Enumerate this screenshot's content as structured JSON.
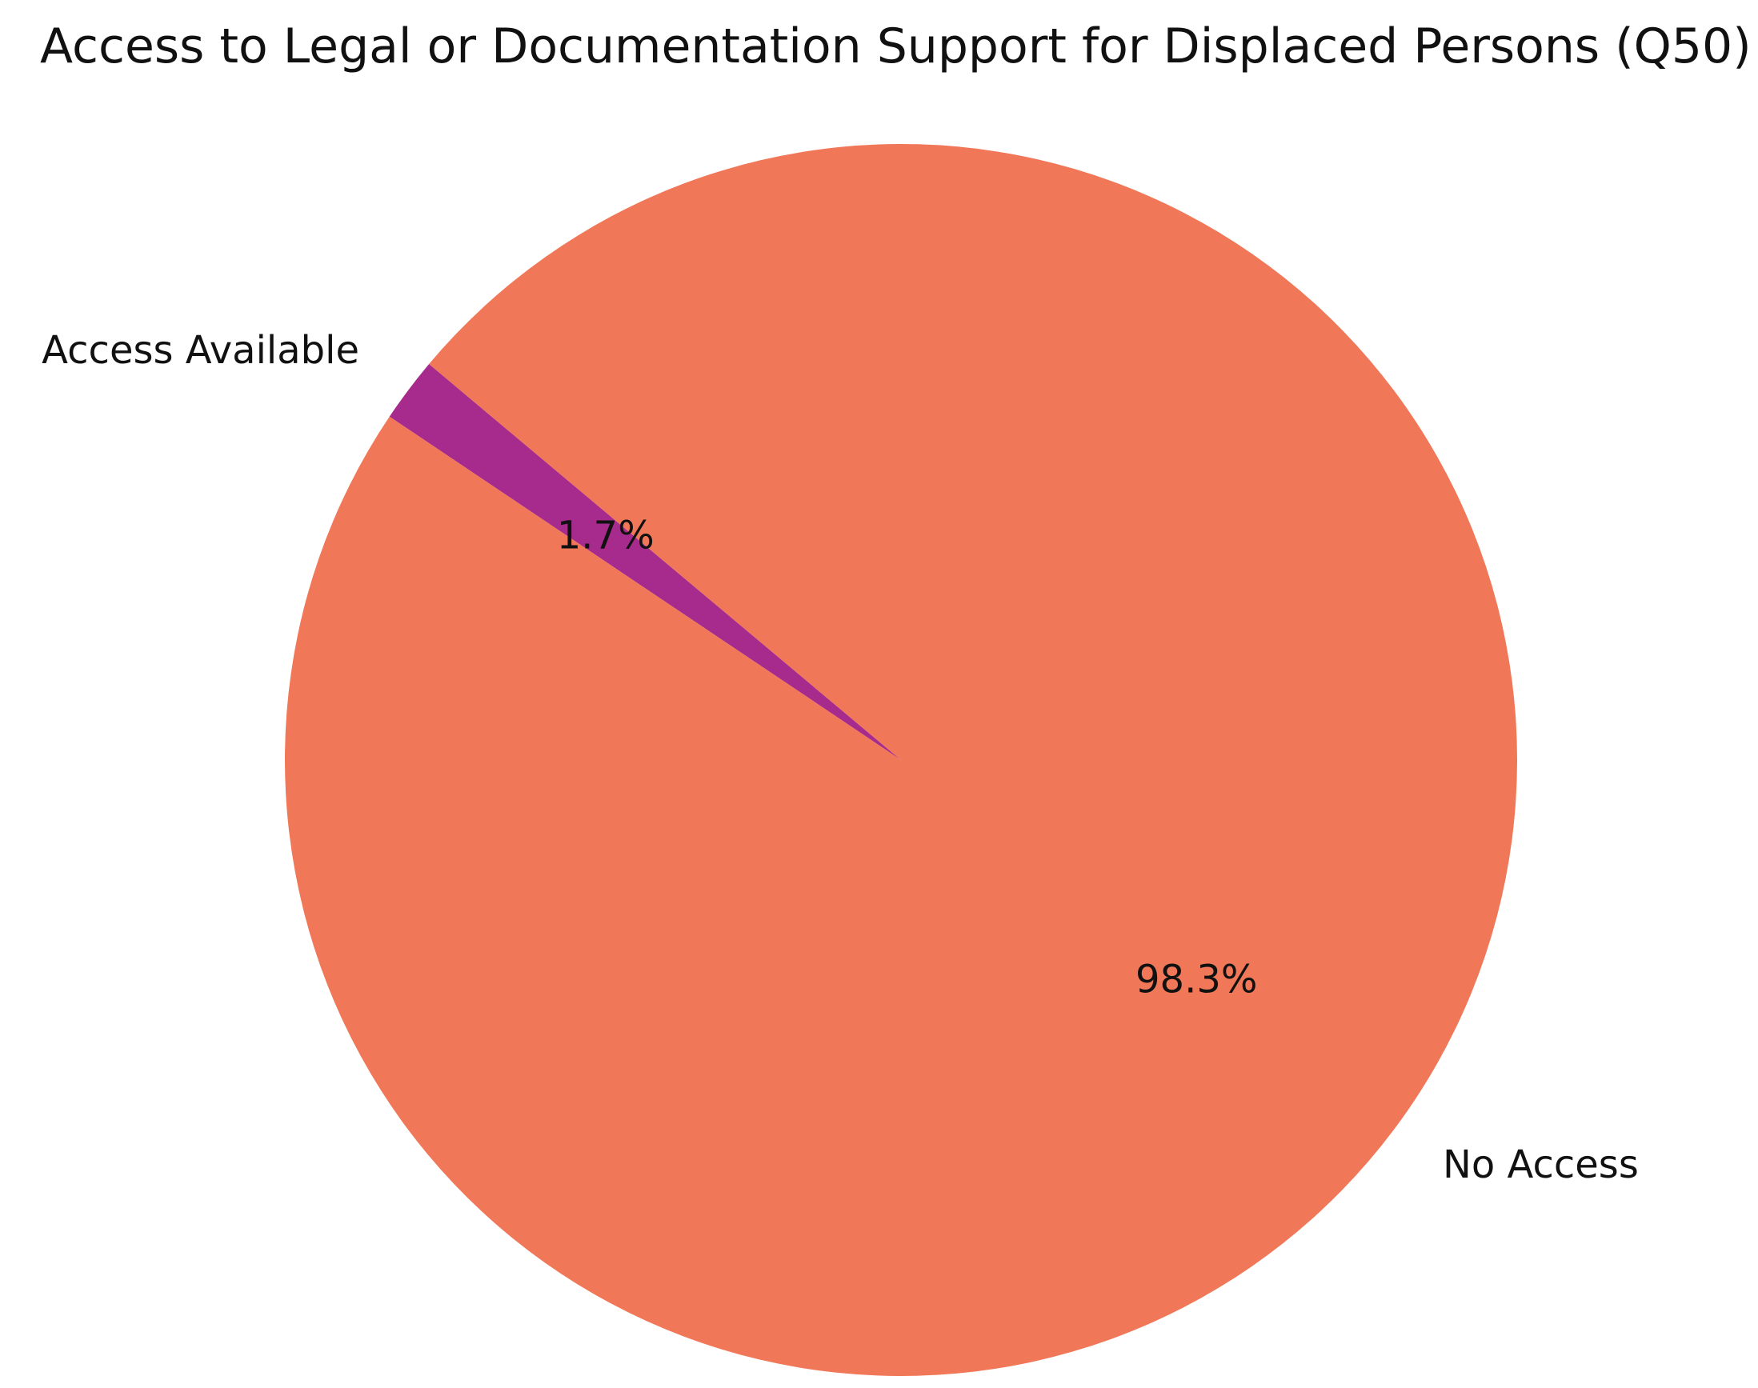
{
  "chart_data": {
    "type": "pie",
    "title": "Access to Legal or Documentation Support for Displaced Persons (Q50)",
    "slices": [
      {
        "label": "Access Available",
        "value": 1.7,
        "pct_label": "1.7%",
        "color": "#a62b8c"
      },
      {
        "label": "No Access",
        "value": 98.3,
        "pct_label": "98.3%",
        "color": "#f07757"
      }
    ],
    "start_angle_deg": 140,
    "direction": "counterclockwise",
    "legend": "none"
  }
}
